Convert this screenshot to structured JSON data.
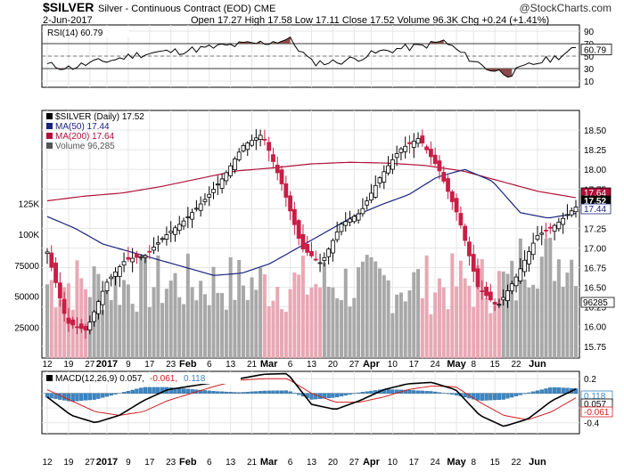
{
  "header": {
    "symbol": "$SILVER",
    "subtitle": "Silver - Continuous Contract (EOD)  CME",
    "date": "2-Jun-2017",
    "ohlc": "Open 17.27  High 17.58  Low 17.11  Close 17.52  Volume 96.3K  Chg +0.24 (+1.41%)",
    "credit": "@StockCharts.com"
  },
  "chart_data": [
    {
      "type": "line",
      "panel": "rsi",
      "legend": "RSI(14) 60.79",
      "ylim": [
        0,
        100
      ],
      "yticks": [
        "90",
        "70",
        "50",
        "30",
        "10"
      ],
      "current_value": "60.79",
      "levels": [
        70,
        30
      ],
      "x": [
        "Dec 12",
        "Dec 19",
        "Dec 27",
        "2017",
        "Jan 9",
        "Jan 17",
        "Jan 23",
        "Feb",
        "Feb 6",
        "Feb 13",
        "Feb 21",
        "Mar",
        "Mar 6",
        "Mar 13",
        "Mar 20",
        "Mar 27",
        "Apr",
        "Apr 10",
        "Apr 17",
        "Apr 24",
        "May",
        "May 8",
        "May 15",
        "May 22",
        "Jun"
      ],
      "values": [
        36,
        31,
        39,
        44,
        52,
        56,
        58,
        62,
        66,
        69,
        72,
        77,
        40,
        40,
        46,
        56,
        62,
        66,
        74,
        50,
        30,
        21,
        37,
        47,
        61
      ]
    },
    {
      "type": "candlestick",
      "panel": "price",
      "legend": [
        "$SILVER (Daily) 17.52",
        "MA(50) 17.44",
        "MA(200) 17.64",
        "Volume 96,285"
      ],
      "ylim": [
        15.6,
        18.75
      ],
      "yticks": [
        "18.50",
        "18.25",
        "18.00",
        "17.75",
        "17.50",
        "17.25",
        "17.00",
        "16.75",
        "16.50",
        "16.25",
        "16.00",
        "15.75"
      ],
      "xticks": [
        "12",
        "19",
        "27",
        "2017",
        "9",
        "17",
        "23",
        "Feb",
        "6",
        "13",
        "21",
        "Mar",
        "6",
        "13",
        "20",
        "27",
        "Apr",
        "10",
        "17",
        "24",
        "May",
        "8",
        "15",
        "22",
        "Jun"
      ],
      "tags": {
        "ma200": "17.64",
        "ma50": "17.44",
        "close": "17.52",
        "volume": "96285"
      },
      "volume_ticks": [
        "125K",
        "100K",
        "75000",
        "50000",
        "25000"
      ],
      "close_anchors": {
        "x": [
          "Dec 12",
          "Dec 19",
          "Dec 27",
          "Jan 3",
          "Jan 9",
          "Jan 17",
          "Jan 23",
          "Feb 1",
          "Feb 6",
          "Feb 13",
          "Feb 21",
          "Feb 27",
          "Mar 3",
          "Mar 9",
          "Mar 13",
          "Mar 20",
          "Mar 27",
          "Apr 3",
          "Apr 10",
          "Apr 17",
          "Apr 21",
          "Apr 27",
          "May 3",
          "May 8",
          "May 15",
          "May 22",
          "May 30",
          "Jun 2"
        ],
        "values": [
          16.95,
          16.05,
          15.95,
          16.55,
          16.85,
          16.9,
          17.15,
          17.35,
          17.6,
          17.9,
          18.3,
          18.45,
          17.8,
          17.0,
          16.8,
          17.3,
          17.45,
          17.9,
          18.25,
          18.4,
          18.0,
          17.4,
          16.5,
          16.25,
          16.65,
          17.15,
          17.3,
          17.52
        ]
      },
      "ma50_anchors": [
        17.4,
        17.25,
        17.05,
        16.95,
        16.85,
        16.75,
        16.65,
        16.68,
        16.8,
        17.0,
        17.2,
        17.4,
        17.55,
        17.68,
        17.9,
        18.0,
        17.85,
        17.45,
        17.38,
        17.44
      ],
      "ma200_anchors": [
        17.6,
        17.66,
        17.7,
        17.78,
        17.88,
        17.98,
        18.02,
        18.07,
        18.09,
        18.08,
        18.05,
        17.98,
        17.85,
        17.72,
        17.64
      ]
    },
    {
      "type": "line",
      "panel": "macd",
      "legend": {
        "name": "MACD(12,26,9)",
        "macd": "0.057",
        "signal": "-0.061",
        "histogram": "0.118"
      },
      "ylim": [
        -0.55,
        0.3
      ],
      "yticks": [
        "0.2",
        "0.0",
        "-0.2",
        "-0.4"
      ],
      "tags": {
        "histogram": "0.118",
        "macd": "0.057",
        "signal": "-0.061"
      },
      "macd": [
        -0.05,
        -0.3,
        -0.4,
        -0.3,
        -0.1,
        0.05,
        0.1,
        0.15,
        0.2,
        0.26,
        0.27,
        -0.15,
        -0.22,
        -0.1,
        0.05,
        0.13,
        0.15,
        0.05,
        -0.3,
        -0.45,
        -0.35,
        -0.1,
        0.06
      ],
      "signal": [
        0.05,
        -0.1,
        -0.25,
        -0.3,
        -0.25,
        -0.1,
        0.0,
        0.1,
        0.18,
        0.2,
        0.2,
        0.0,
        -0.12,
        -0.12,
        -0.05,
        0.05,
        0.1,
        0.09,
        -0.12,
        -0.3,
        -0.36,
        -0.25,
        -0.06
      ]
    }
  ],
  "colors": {
    "up_candle": "#000000",
    "down_candle": "#c81e46",
    "ma50": "#1a237e",
    "ma200": "#b0103a",
    "macd_line": "#000000",
    "signal_line": "#d02020",
    "histogram": "#3b86c4",
    "volume_up": "#a8a8a8",
    "volume_down": "#e8a8b4"
  }
}
